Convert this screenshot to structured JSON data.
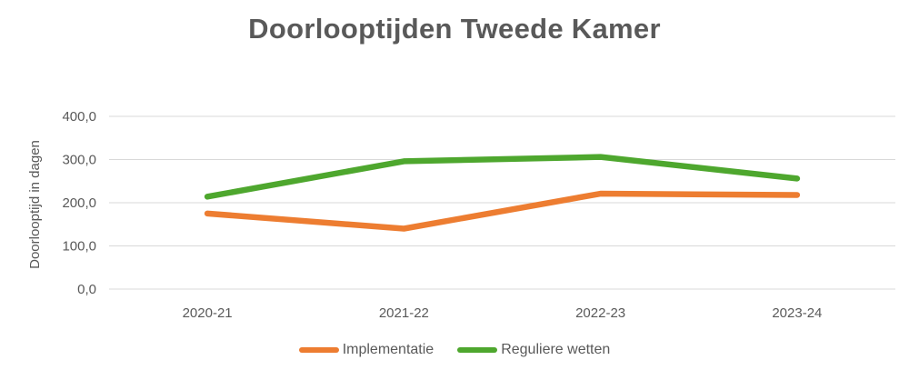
{
  "chart_data": {
    "type": "line",
    "title": "Doorlooptijden Tweede Kamer",
    "xlabel": "",
    "ylabel": "Doorlooptijd in dagen",
    "categories": [
      "2020-21",
      "2021-22",
      "2022-23",
      "2023-24"
    ],
    "ylim": [
      0,
      400
    ],
    "yticks": [
      "0,0",
      "100,0",
      "200,0",
      "300,0",
      "400,0"
    ],
    "grid": true,
    "legend": "bottom",
    "series": [
      {
        "name": "Implementatie",
        "color": "#ED7D31",
        "values": [
          175,
          140,
          221,
          218
        ]
      },
      {
        "name": "Reguliere wetten",
        "color": "#4EA72E",
        "values": [
          214,
          296,
          306,
          256
        ]
      }
    ]
  }
}
